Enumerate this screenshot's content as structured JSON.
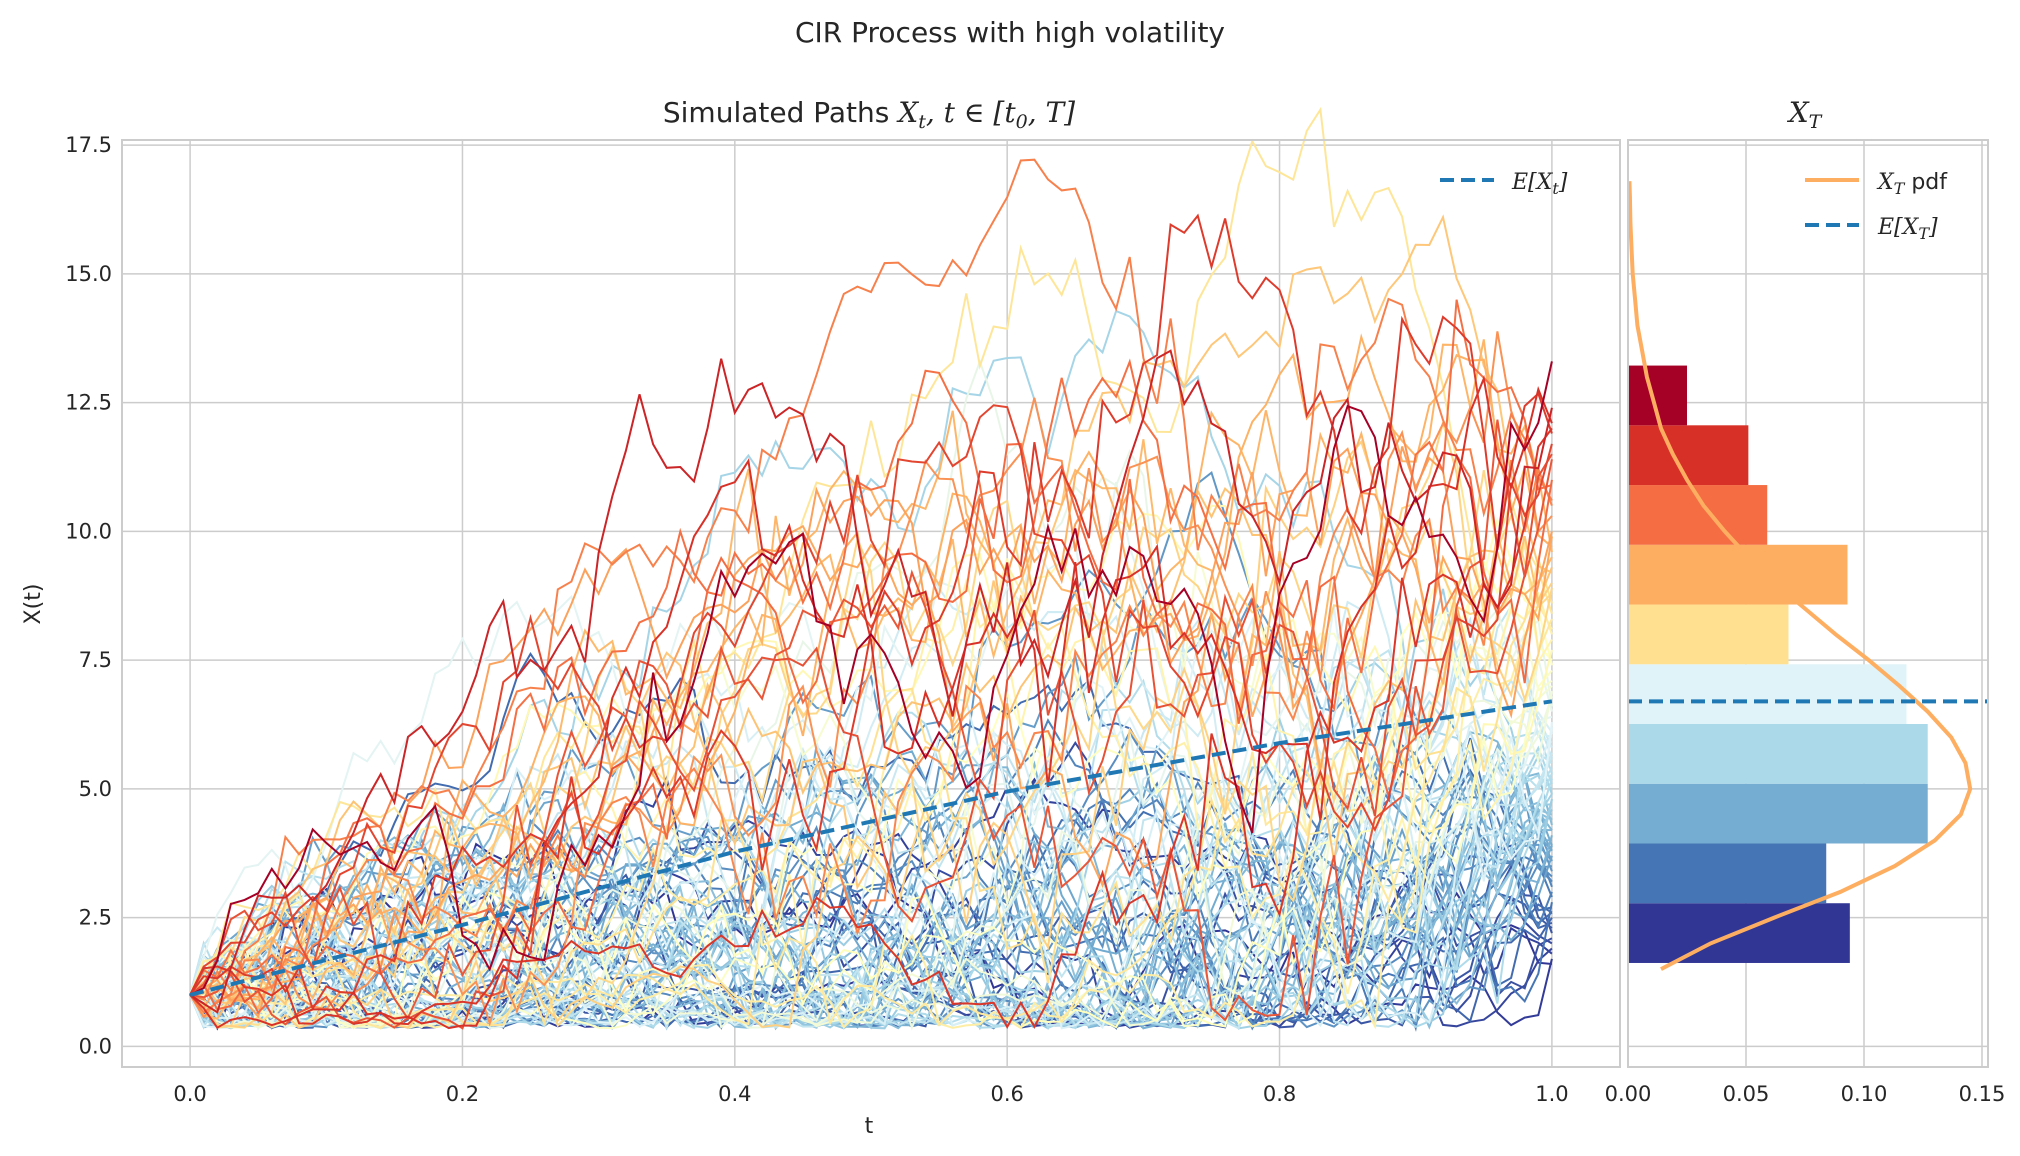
{
  "figure": {
    "suptitle": "CIR Process with high volatility"
  },
  "chart_data": [
    {
      "type": "line",
      "title": "Simulated Paths X_t, t ∈ [t_0, T]",
      "title_parts": {
        "prefix": "Simulated Paths ",
        "math": "X",
        "sub": "t",
        "rest": ", t ∈ [t",
        "sub2": "0",
        "tail": ", T]"
      },
      "xlabel": "t",
      "ylabel": "X(t)",
      "xlim": [
        -0.05,
        1.05
      ],
      "ylim": [
        -0.4,
        17.6
      ],
      "xticks": [
        "0.0",
        "0.2",
        "0.4",
        "0.6",
        "0.8",
        "1.0"
      ],
      "yticks": [
        "0.0",
        "2.5",
        "5.0",
        "7.5",
        "10.0",
        "12.5",
        "15.0",
        "17.5"
      ],
      "grid": true,
      "legend_position": "top-right",
      "legend": [
        {
          "label": "E[X_t]",
          "math": "E[X",
          "sub": "t",
          "close": "]",
          "color": "#1f77b4",
          "style": "dashed"
        }
      ],
      "x0": 1.0,
      "mean_line": {
        "x": [
          0.0,
          0.2,
          0.4,
          0.6,
          0.8,
          1.0
        ],
        "y": [
          1.0,
          2.36,
          3.78,
          4.95,
          5.89,
          6.7
        ],
        "color": "#1f77b4"
      },
      "n_paths": 100,
      "n_steps": 100,
      "path_endpoints": [
        13.3,
        12.4,
        12.1,
        11.9,
        11.7,
        11.4,
        10.9,
        10.6,
        10.3,
        9.9,
        9.7,
        9.5,
        9.3,
        9.0,
        8.8,
        8.6,
        8.3,
        8.1,
        7.9,
        7.7,
        7.5,
        7.3,
        7.1,
        6.9,
        6.8,
        6.6,
        6.4,
        6.3,
        6.1,
        6.0,
        5.9,
        5.8,
        5.7,
        5.6,
        5.5,
        5.4,
        5.3,
        5.2,
        5.1,
        5.0,
        4.9,
        4.8,
        4.7,
        4.6,
        4.5,
        4.4,
        4.3,
        4.2,
        4.1,
        4.0,
        3.9,
        3.8,
        3.7,
        3.6,
        3.5,
        3.4,
        3.3,
        3.2,
        3.1,
        3.0,
        2.9,
        2.8,
        2.7,
        2.6,
        2.5,
        2.4,
        2.3,
        2.2,
        2.1,
        2.0,
        1.9,
        1.8,
        1.7,
        1.6,
        5.6,
        4.8,
        4.2,
        3.9,
        3.6,
        3.2,
        6.2,
        6.5,
        7.0,
        7.4,
        8.0,
        8.4,
        8.9,
        9.2,
        9.6,
        10.0,
        10.5,
        11.0,
        11.5,
        12.0,
        6.1,
        5.3,
        4.9,
        4.4,
        3.8,
        2.6
      ]
    },
    {
      "type": "bar",
      "orientation": "horizontal",
      "title": "X_T",
      "title_parts": {
        "math": "X",
        "sub": "T"
      },
      "xlim": [
        0.0,
        0.15
      ],
      "ylim": [
        -0.4,
        17.6
      ],
      "xticks": [
        "0.00",
        "0.05",
        "0.10",
        "0.15"
      ],
      "grid": true,
      "legend_position": "top-right",
      "legend": [
        {
          "label": "X_T pdf",
          "math": "X",
          "sub": "T",
          "rest": " pdf",
          "color": "#fdae61",
          "style": "solid"
        },
        {
          "label": "E[X_T]",
          "math": "E[X",
          "sub": "T",
          "close": "]",
          "color": "#1f77b4",
          "style": "dashed"
        }
      ],
      "bins": [
        {
          "y0": 1.62,
          "y1": 2.78,
          "density": 0.094,
          "color": "#313695"
        },
        {
          "y0": 2.78,
          "y1": 3.94,
          "density": 0.084,
          "color": "#4575b4"
        },
        {
          "y0": 3.94,
          "y1": 5.1,
          "density": 0.127,
          "color": "#74add1"
        },
        {
          "y0": 5.1,
          "y1": 6.26,
          "density": 0.127,
          "color": "#abd9e9"
        },
        {
          "y0": 6.26,
          "y1": 7.42,
          "density": 0.118,
          "color": "#e0f3f8"
        },
        {
          "y0": 7.42,
          "y1": 8.58,
          "density": 0.068,
          "color": "#fee090"
        },
        {
          "y0": 8.58,
          "y1": 9.74,
          "density": 0.093,
          "color": "#fdae61"
        },
        {
          "y0": 9.74,
          "y1": 10.9,
          "density": 0.059,
          "color": "#f46d43"
        },
        {
          "y0": 10.9,
          "y1": 12.06,
          "density": 0.051,
          "color": "#d73027"
        },
        {
          "y0": 12.06,
          "y1": 13.22,
          "density": 0.025,
          "color": "#a50026"
        }
      ],
      "pdf": {
        "y": [
          1.5,
          2.0,
          2.5,
          3.0,
          3.5,
          4.0,
          4.5,
          5.0,
          5.5,
          6.0,
          6.5,
          7.0,
          7.5,
          8.0,
          8.5,
          9.0,
          9.5,
          10.0,
          10.5,
          11.0,
          11.5,
          12.0,
          12.5,
          13.0,
          13.5,
          14.0,
          14.5,
          15.0,
          15.5,
          16.0,
          16.5,
          16.8
        ],
        "density": [
          0.014,
          0.035,
          0.062,
          0.09,
          0.113,
          0.13,
          0.141,
          0.145,
          0.143,
          0.137,
          0.127,
          0.115,
          0.102,
          0.088,
          0.075,
          0.062,
          0.051,
          0.041,
          0.032,
          0.025,
          0.019,
          0.014,
          0.011,
          0.008,
          0.006,
          0.004,
          0.003,
          0.002,
          0.0015,
          0.001,
          0.0008,
          0.0006
        ],
        "color": "#fdae61"
      },
      "mean_value": 6.7
    }
  ]
}
